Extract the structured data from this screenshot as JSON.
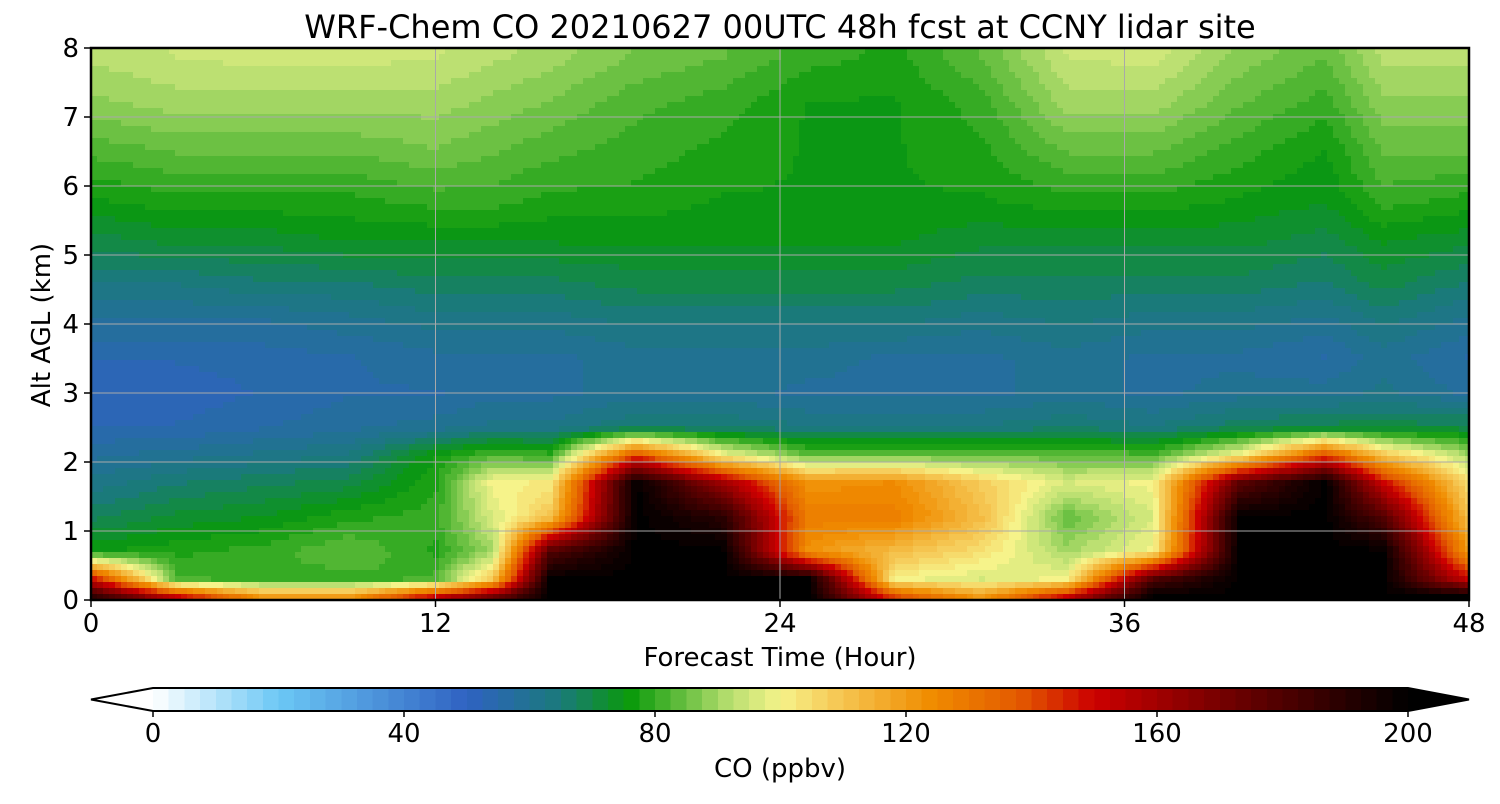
{
  "chart_data": {
    "type": "heatmap",
    "title": "WRF-Chem CO  20210627 00UTC 48h fcst at CCNY lidar site",
    "xlabel": "Forecast Time (Hour)",
    "ylabel": "Alt AGL (km)",
    "xlim": [
      0,
      48
    ],
    "ylim": [
      0,
      8
    ],
    "xticks": [
      0,
      12,
      24,
      36,
      48
    ],
    "yticks": [
      0,
      1,
      2,
      3,
      4,
      5,
      6,
      7,
      8
    ],
    "grid": true,
    "colorbar": {
      "label": "CO  (ppbv)",
      "range": [
        0,
        200
      ],
      "ticks": [
        0,
        40,
        80,
        120,
        160,
        200
      ],
      "extend": "both",
      "stops": [
        {
          "value": 0,
          "color": "#ffffff"
        },
        {
          "value": 20,
          "color": "#6cc8f5"
        },
        {
          "value": 50,
          "color": "#2f62c2"
        },
        {
          "value": 65,
          "color": "#1a7a7a"
        },
        {
          "value": 76,
          "color": "#0a9a0a"
        },
        {
          "value": 92,
          "color": "#b8df70"
        },
        {
          "value": 100,
          "color": "#f6f38a"
        },
        {
          "value": 108,
          "color": "#f6cc5a"
        },
        {
          "value": 124,
          "color": "#f08c00"
        },
        {
          "value": 138,
          "color": "#e35a00"
        },
        {
          "value": 150,
          "color": "#cc0000"
        },
        {
          "value": 172,
          "color": "#6e0000"
        },
        {
          "value": 200,
          "color": "#000000"
        }
      ]
    },
    "profile": {
      "alt_km": [
        0.05,
        0.3,
        0.7,
        1.2,
        1.7,
        2.1,
        2.5,
        3.0,
        3.5,
        4.0,
        4.6,
        5.2,
        5.8,
        6.5,
        7.2,
        7.9
      ],
      "series": [
        {
          "hour": 0,
          "co_ppbv": [
            190,
            150,
            76,
            68,
            62,
            58,
            54,
            52,
            54,
            58,
            64,
            70,
            76,
            82,
            88,
            92
          ]
        },
        {
          "hour": 3,
          "co_ppbv": [
            150,
            82,
            78,
            72,
            66,
            60,
            54,
            52,
            54,
            58,
            64,
            72,
            78,
            84,
            90,
            94
          ]
        },
        {
          "hour": 6,
          "co_ppbv": [
            120,
            80,
            80,
            74,
            68,
            62,
            56,
            54,
            55,
            58,
            66,
            72,
            78,
            84,
            90,
            95
          ]
        },
        {
          "hour": 9,
          "co_ppbv": [
            120,
            80,
            84,
            78,
            70,
            64,
            58,
            56,
            56,
            60,
            66,
            74,
            78,
            84,
            90,
            95
          ]
        },
        {
          "hour": 12,
          "co_ppbv": [
            150,
            82,
            78,
            80,
            78,
            76,
            60,
            56,
            58,
            62,
            68,
            74,
            80,
            86,
            90,
            94
          ]
        },
        {
          "hour": 14,
          "co_ppbv": [
            170,
            110,
            90,
            96,
            100,
            82,
            62,
            58,
            58,
            62,
            68,
            74,
            80,
            84,
            88,
            92
          ]
        },
        {
          "hour": 16,
          "co_ppbv": [
            200,
            200,
            180,
            110,
            102,
            80,
            62,
            58,
            58,
            62,
            68,
            74,
            78,
            82,
            86,
            90
          ]
        },
        {
          "hour": 19,
          "co_ppbv": [
            200,
            200,
            200,
            200,
            200,
            140,
            66,
            60,
            60,
            64,
            70,
            74,
            78,
            80,
            82,
            86
          ]
        },
        {
          "hour": 22,
          "co_ppbv": [
            200,
            200,
            200,
            190,
            160,
            100,
            66,
            60,
            60,
            64,
            70,
            74,
            76,
            78,
            80,
            84
          ]
        },
        {
          "hour": 25,
          "co_ppbv": [
            200,
            200,
            122,
            128,
            122,
            84,
            64,
            58,
            60,
            64,
            70,
            74,
            76,
            76,
            76,
            80
          ]
        },
        {
          "hour": 28,
          "co_ppbv": [
            140,
            100,
            112,
            128,
            124,
            84,
            64,
            58,
            58,
            64,
            70,
            74,
            76,
            76,
            76,
            78
          ]
        },
        {
          "hour": 31,
          "co_ppbv": [
            120,
            96,
            104,
            112,
            108,
            84,
            64,
            58,
            58,
            62,
            68,
            72,
            76,
            78,
            80,
            84
          ]
        },
        {
          "hour": 34,
          "co_ppbv": [
            150,
            100,
            90,
            84,
            96,
            84,
            66,
            60,
            60,
            64,
            68,
            72,
            78,
            84,
            90,
            94
          ]
        },
        {
          "hour": 37,
          "co_ppbv": [
            200,
            180,
            100,
            96,
            100,
            82,
            64,
            58,
            58,
            62,
            68,
            72,
            78,
            84,
            90,
            95
          ]
        },
        {
          "hour": 40,
          "co_ppbv": [
            200,
            200,
            200,
            200,
            176,
            100,
            68,
            60,
            58,
            62,
            68,
            72,
            76,
            80,
            84,
            88
          ]
        },
        {
          "hour": 43,
          "co_ppbv": [
            200,
            200,
            200,
            200,
            200,
            140,
            70,
            60,
            56,
            60,
            66,
            70,
            74,
            76,
            80,
            84
          ]
        },
        {
          "hour": 45,
          "co_ppbv": [
            200,
            200,
            200,
            180,
            150,
            110,
            70,
            62,
            60,
            64,
            70,
            74,
            80,
            84,
            88,
            92
          ]
        },
        {
          "hour": 48,
          "co_ppbv": [
            200,
            150,
            120,
            110,
            104,
            90,
            70,
            58,
            56,
            60,
            66,
            72,
            78,
            84,
            88,
            92
          ]
        }
      ]
    }
  }
}
